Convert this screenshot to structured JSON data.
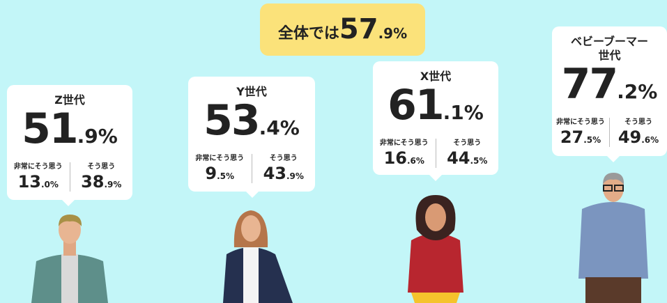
{
  "summary": {
    "label": "全体では",
    "integer": "57",
    "fraction": ".9%"
  },
  "groups": [
    {
      "name": "Z世代",
      "integer": "51",
      "fraction": ".9%",
      "strongly_label": "非常にそう思う",
      "strongly_integer": "13",
      "strongly_fraction": ".0%",
      "agree_label": "そう思う",
      "agree_integer": "38",
      "agree_fraction": ".9%"
    },
    {
      "name": "Y世代",
      "integer": "53",
      "fraction": ".4%",
      "strongly_label": "非常にそう思う",
      "strongly_integer": "9",
      "strongly_fraction": ".5%",
      "agree_label": "そう思う",
      "agree_integer": "43",
      "agree_fraction": ".9%"
    },
    {
      "name": "X世代",
      "integer": "61",
      "fraction": ".1%",
      "strongly_label": "非常にそう思う",
      "strongly_integer": "16",
      "strongly_fraction": ".6%",
      "agree_label": "そう思う",
      "agree_integer": "44",
      "agree_fraction": ".5%"
    },
    {
      "name": "ベビーブーマー\n世代",
      "integer": "77",
      "fraction": ".2%",
      "strongly_label": "非常にそう思う",
      "strongly_integer": "27",
      "strongly_fraction": ".5%",
      "agree_label": "そう思う",
      "agree_integer": "49",
      "agree_fraction": ".6%"
    }
  ]
}
